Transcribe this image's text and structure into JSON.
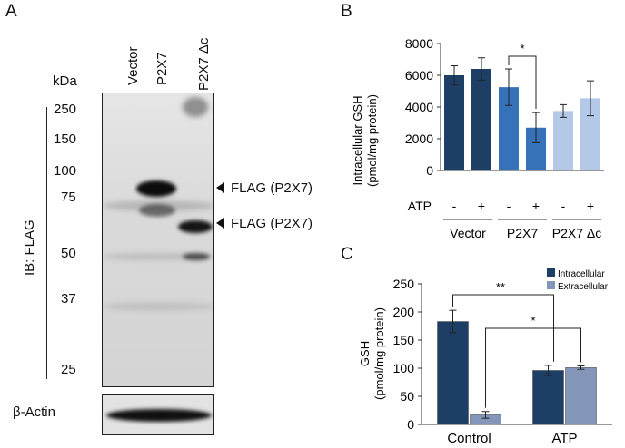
{
  "panels": {
    "a": "A",
    "b": "B",
    "c": "C"
  },
  "blot": {
    "lanes": [
      "Vector",
      "P2X7",
      "P2X7 Δc"
    ],
    "kda_label": "kDa",
    "markers": [
      "250",
      "150",
      "100",
      "75",
      "50",
      "37",
      "25"
    ],
    "ib_label": "IB: FLAG",
    "band_labels": [
      "FLAG (P2X7)",
      "FLAG (P2X7)"
    ],
    "actin_label": "β-Actin"
  },
  "chart_data": [
    {
      "type": "bar",
      "panel": "B",
      "ylabel_line1": "Intracellular GSH",
      "ylabel_line2": "(pmol/mg protein)",
      "ylim": [
        0,
        8000
      ],
      "yticks": [
        "0",
        "2000",
        "4000",
        "6000",
        "8000"
      ],
      "atp_row_label": "ATP",
      "atp_states": [
        "-",
        "+",
        "-",
        "+",
        "-",
        "+"
      ],
      "groups": [
        "Vector",
        "P2X7",
        "P2X7 Δc"
      ],
      "values": [
        6000,
        6400,
        5250,
        2700,
        3750,
        4550
      ],
      "errors": [
        600,
        700,
        1150,
        950,
        400,
        1100
      ],
      "colors": [
        "#1d3f66",
        "#1d3f66",
        "#3572b8",
        "#3572b8",
        "#b4c8e8",
        "#b4c8e8"
      ],
      "significance": "*"
    },
    {
      "type": "bar",
      "panel": "C",
      "ylabel_line1": "GSH",
      "ylabel_line2": "(pmol/mg protein)",
      "ylim": [
        0,
        250
      ],
      "yticks": [
        "0",
        "50",
        "100",
        "150",
        "200",
        "250"
      ],
      "categories": [
        "Control",
        "ATP"
      ],
      "series": [
        {
          "name": "Intracellular",
          "values": [
            183,
            96
          ],
          "errors": [
            20,
            9
          ],
          "color": "#1d3f66"
        },
        {
          "name": "Extracellular",
          "values": [
            17,
            101
          ],
          "errors": [
            6,
            3
          ],
          "color": "#8395b8"
        }
      ],
      "significance": [
        "**",
        "*"
      ]
    }
  ]
}
